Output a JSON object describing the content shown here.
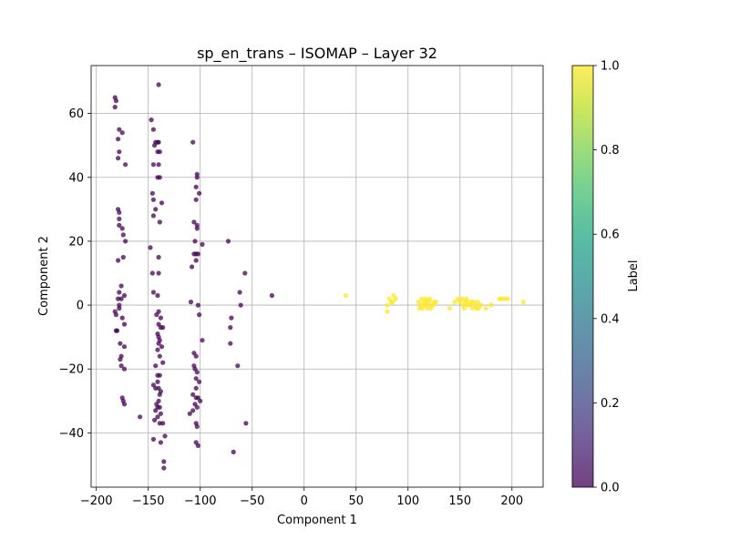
{
  "chart_data": {
    "type": "scatter",
    "title": "sp_en_trans – ISOMAP – Layer 32",
    "xlabel": "Component 1",
    "ylabel": "Component 2",
    "xlim": [
      -205,
      230
    ],
    "ylim": [
      -57,
      75
    ],
    "xticks": [
      -200,
      -150,
      -100,
      -50,
      0,
      50,
      100,
      150,
      200
    ],
    "yticks": [
      -40,
      -20,
      0,
      20,
      40,
      60
    ],
    "xtick_labels": [
      "−200",
      "−150",
      "−100",
      "−50",
      "0",
      "50",
      "100",
      "150",
      "200"
    ],
    "ytick_labels": [
      "−40",
      "−20",
      "0",
      "20",
      "40",
      "60"
    ],
    "grid": true,
    "colorbar": {
      "label": "Label",
      "min": 0.0,
      "max": 1.0,
      "ticks": [
        0.0,
        0.2,
        0.4,
        0.6,
        0.8,
        1.0
      ],
      "tick_labels": [
        "0.0",
        "0.2",
        "0.4",
        "0.6",
        "0.8",
        "1.0"
      ],
      "colormap": "viridis"
    },
    "colors": {
      "label_0": "#440154",
      "label_1": "#fde725"
    },
    "point_alpha": 0.75,
    "series": [
      {
        "label_value": 0,
        "points": [
          [
            -182,
            65
          ],
          [
            -181,
            64
          ],
          [
            -182,
            62
          ],
          [
            -178,
            55
          ],
          [
            -179,
            52
          ],
          [
            -175,
            54
          ],
          [
            -178,
            48
          ],
          [
            -179,
            46
          ],
          [
            -172,
            44
          ],
          [
            -179,
            30
          ],
          [
            -178,
            29
          ],
          [
            -178,
            27
          ],
          [
            -178,
            25
          ],
          [
            -175,
            24
          ],
          [
            -174,
            22
          ],
          [
            -172,
            20
          ],
          [
            -179,
            14
          ],
          [
            -174,
            15
          ],
          [
            -176,
            6
          ],
          [
            -178,
            4
          ],
          [
            -176,
            2
          ],
          [
            -179,
            2
          ],
          [
            -173,
            3
          ],
          [
            -182,
            -2
          ],
          [
            -181,
            -3
          ],
          [
            -178,
            0
          ],
          [
            -178,
            -1
          ],
          [
            -175,
            -4
          ],
          [
            -173,
            -6
          ],
          [
            -181,
            -8
          ],
          [
            -180,
            -8
          ],
          [
            -177,
            -12
          ],
          [
            -173,
            -13
          ],
          [
            -176,
            -16
          ],
          [
            -177,
            -17
          ],
          [
            -176,
            -19
          ],
          [
            -173,
            -20
          ],
          [
            -175,
            -29
          ],
          [
            -174,
            -30
          ],
          [
            -173,
            -31
          ],
          [
            -158,
            -35
          ],
          [
            -145,
            -42
          ],
          [
            -138,
            -43
          ],
          [
            -134,
            -41
          ],
          [
            -135,
            -49
          ],
          [
            -135,
            -51
          ],
          [
            -147,
            58
          ],
          [
            -145,
            55
          ],
          [
            -143,
            51
          ],
          [
            -141,
            51
          ],
          [
            -140,
            51
          ],
          [
            -144,
            50
          ],
          [
            -141,
            48
          ],
          [
            -139,
            48
          ],
          [
            -140,
            44
          ],
          [
            -145,
            44
          ],
          [
            -141,
            40
          ],
          [
            -139,
            40
          ],
          [
            -146,
            35
          ],
          [
            -145,
            33
          ],
          [
            -137,
            32
          ],
          [
            -143,
            30
          ],
          [
            -145,
            28
          ],
          [
            -139,
            26
          ],
          [
            -148,
            18
          ],
          [
            -140,
            15
          ],
          [
            -146,
            10
          ],
          [
            -140,
            10
          ],
          [
            -145,
            4
          ],
          [
            -141,
            3
          ],
          [
            -140,
            -2
          ],
          [
            -142,
            -3
          ],
          [
            -138,
            -4
          ],
          [
            -140,
            -6
          ],
          [
            -138,
            -7
          ],
          [
            -136,
            -7
          ],
          [
            -141,
            -9
          ],
          [
            -140,
            -10
          ],
          [
            -139,
            -11
          ],
          [
            -140,
            -12
          ],
          [
            -137,
            -13
          ],
          [
            -141,
            -14
          ],
          [
            -139,
            -16
          ],
          [
            -136,
            -18
          ],
          [
            -143,
            -19
          ],
          [
            -141,
            -22
          ],
          [
            -139,
            -22
          ],
          [
            -141,
            -24
          ],
          [
            -145,
            -25
          ],
          [
            -143,
            -26
          ],
          [
            -140,
            -26
          ],
          [
            -138,
            -27
          ],
          [
            -139,
            -28
          ],
          [
            -140,
            -30
          ],
          [
            -142,
            -31
          ],
          [
            -141,
            -32
          ],
          [
            -139,
            -32
          ],
          [
            -143,
            -33
          ],
          [
            -138,
            -34
          ],
          [
            -141,
            -35
          ],
          [
            -144,
            -36
          ],
          [
            -136,
            -37
          ],
          [
            -139,
            -37
          ],
          [
            -140,
            69
          ],
          [
            -107,
            51
          ],
          [
            -103,
            41
          ],
          [
            -103,
            40
          ],
          [
            -104,
            37
          ],
          [
            -101,
            35
          ],
          [
            -104,
            33
          ],
          [
            -106,
            26
          ],
          [
            -103,
            25
          ],
          [
            -103,
            24
          ],
          [
            -98,
            19
          ],
          [
            -105,
            20
          ],
          [
            -106,
            16
          ],
          [
            -104,
            16
          ],
          [
            -102,
            16
          ],
          [
            -108,
            12
          ],
          [
            -104,
            14
          ],
          [
            -109,
            1
          ],
          [
            -102,
            0
          ],
          [
            -101,
            -3
          ],
          [
            -98,
            -11
          ],
          [
            -106,
            -15
          ],
          [
            -104,
            -16
          ],
          [
            -106,
            -19
          ],
          [
            -105,
            -20
          ],
          [
            -103,
            -21
          ],
          [
            -104,
            -23
          ],
          [
            -101,
            -24
          ],
          [
            -104,
            -26
          ],
          [
            -107,
            -28
          ],
          [
            -104,
            -29
          ],
          [
            -102,
            -29
          ],
          [
            -100,
            -30
          ],
          [
            -105,
            -31
          ],
          [
            -103,
            -32
          ],
          [
            -107,
            -33
          ],
          [
            -110,
            -34
          ],
          [
            -104,
            -37
          ],
          [
            -103,
            -38
          ],
          [
            -104,
            -43
          ],
          [
            -102,
            -44
          ],
          [
            -73,
            20
          ],
          [
            -70,
            -4
          ],
          [
            -71,
            -7
          ],
          [
            -71,
            -12
          ],
          [
            -62,
            4
          ],
          [
            -61,
            0
          ],
          [
            -64,
            -19
          ],
          [
            -57,
            10
          ],
          [
            -56,
            -37
          ],
          [
            -68,
            -46
          ],
          [
            -31,
            3
          ]
        ]
      },
      {
        "label_value": 1,
        "points": [
          [
            40,
            3
          ],
          [
            82,
            2
          ],
          [
            85,
            1
          ],
          [
            88,
            2
          ],
          [
            86,
            3
          ],
          [
            80,
            0
          ],
          [
            80,
            -2
          ],
          [
            84,
            1
          ],
          [
            110,
            1
          ],
          [
            112,
            0
          ],
          [
            113,
            2
          ],
          [
            115,
            1
          ],
          [
            117,
            2
          ],
          [
            118,
            0
          ],
          [
            120,
            1
          ],
          [
            121,
            2
          ],
          [
            123,
            0
          ],
          [
            125,
            1
          ],
          [
            127,
            1
          ],
          [
            111,
            -1
          ],
          [
            114,
            -1
          ],
          [
            116,
            0
          ],
          [
            119,
            -1
          ],
          [
            122,
            -1
          ],
          [
            124,
            0
          ],
          [
            118,
            1
          ],
          [
            140,
            -1
          ],
          [
            145,
            1
          ],
          [
            148,
            2
          ],
          [
            150,
            1
          ],
          [
            152,
            2
          ],
          [
            153,
            0
          ],
          [
            155,
            1
          ],
          [
            156,
            2
          ],
          [
            158,
            1
          ],
          [
            160,
            0
          ],
          [
            161,
            1
          ],
          [
            162,
            -1
          ],
          [
            163,
            1
          ],
          [
            165,
            0
          ],
          [
            166,
            -1
          ],
          [
            167,
            1
          ],
          [
            170,
            0
          ],
          [
            168,
            -1
          ],
          [
            175,
            -1
          ],
          [
            180,
            0
          ],
          [
            188,
            2
          ],
          [
            190,
            2
          ],
          [
            193,
            2
          ],
          [
            196,
            2
          ],
          [
            211,
            1
          ],
          [
            157,
            0
          ],
          [
            154,
            -1
          ]
        ]
      }
    ]
  }
}
